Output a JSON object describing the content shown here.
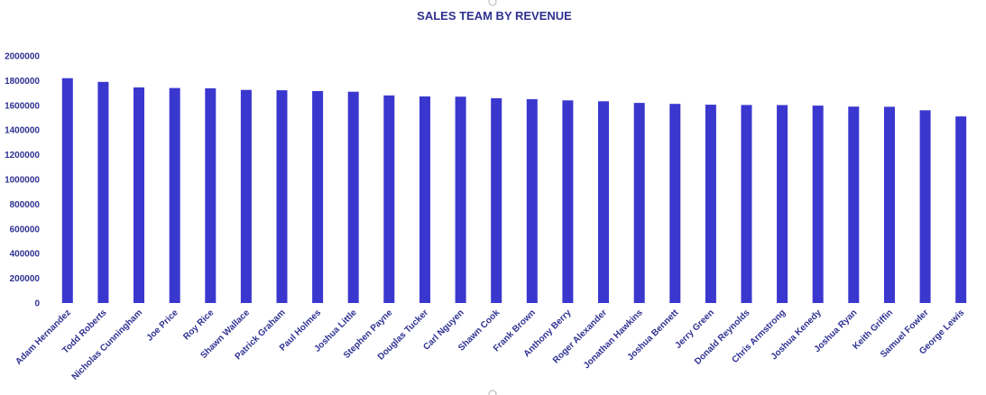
{
  "chart_data": {
    "type": "bar",
    "title": "SALES TEAM BY REVENUE",
    "xlabel": "",
    "ylabel": "",
    "ylim": [
      0,
      2000000
    ],
    "y_ticks": [
      0,
      200000,
      400000,
      600000,
      800000,
      1000000,
      1200000,
      1400000,
      1600000,
      1800000,
      2000000
    ],
    "y_tick_labels": [
      "0",
      "200000",
      "400000",
      "600000",
      "800000",
      "1000000",
      "1200000",
      "1400000",
      "1600000",
      "1800000",
      "2000000"
    ],
    "grid": false,
    "legend": "none",
    "bar_color": "#3a37cf",
    "text_color": "#2f3192",
    "categories": [
      "Adam Hernandez",
      "Todd Roberts",
      "Nicholas Cunningham",
      "Joe Price",
      "Roy Rice",
      "Shawn Wallace",
      "Patrick Graham",
      "Paul Holmes",
      "Joshua Little",
      "Stephen Payne",
      "Douglas Tucker",
      "Carl Nguyen",
      "Shawn Cook",
      "Frank Brown",
      "Anthony Berry",
      "Roger Alexander",
      "Jonathan Hawkins",
      "Joshua Bennett",
      "Jerry Green",
      "Donald Reynolds",
      "Chris Armstrong",
      "Joshua Kenedy",
      "Joshua Ryan",
      "Keith Griffin",
      "Samuel Fowler",
      "George Lewis"
    ],
    "values": [
      1820000,
      1790000,
      1745000,
      1740000,
      1738000,
      1725000,
      1722000,
      1715000,
      1710000,
      1680000,
      1672000,
      1670000,
      1658000,
      1650000,
      1640000,
      1633000,
      1620000,
      1612000,
      1605000,
      1603000,
      1602000,
      1598000,
      1590000,
      1588000,
      1560000,
      1510000
    ]
  }
}
